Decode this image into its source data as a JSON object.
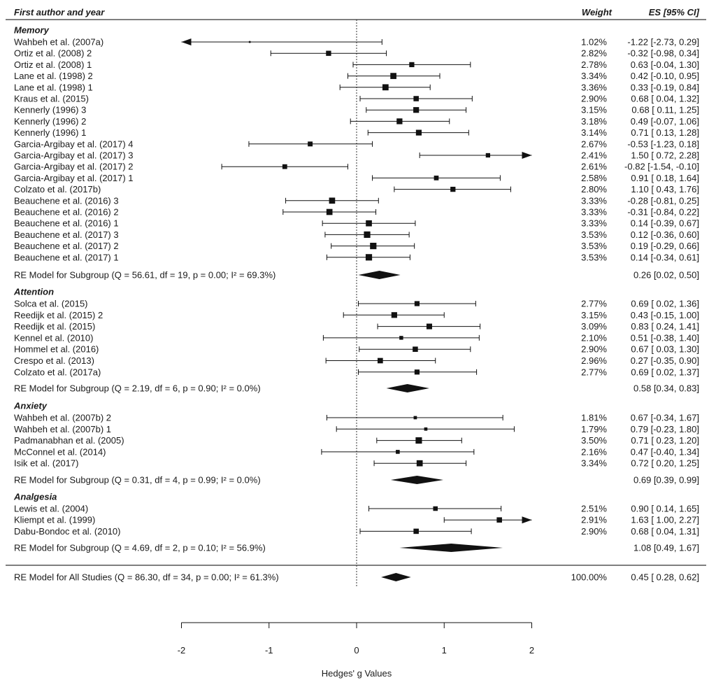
{
  "chart_data": {
    "type": "forest",
    "headers": {
      "study": "First author and year",
      "weight": "Weight",
      "es": "ES [95% CI]"
    },
    "xlabel": "Hedges' g Values",
    "xlim": [
      -2,
      2
    ],
    "xticks": [
      -2,
      -1,
      0,
      1,
      2
    ],
    "reference_line": 0,
    "groups": [
      {
        "name": "Memory",
        "studies": [
          {
            "label": "Wahbeh et al. (2007a)",
            "weight": 1.02,
            "weight_text": "1.02%",
            "es": -1.22,
            "lo": -2.73,
            "hi": 0.29,
            "es_text": "-1.22 [-2.73,  0.29]"
          },
          {
            "label": "Ortiz et al. (2008) 2",
            "weight": 2.82,
            "weight_text": "2.82%",
            "es": -0.32,
            "lo": -0.98,
            "hi": 0.34,
            "es_text": "-0.32 [-0.98,  0.34]"
          },
          {
            "label": "Ortiz et al. (2008) 1",
            "weight": 2.78,
            "weight_text": "2.78%",
            "es": 0.63,
            "lo": -0.04,
            "hi": 1.3,
            "es_text": "0.63 [-0.04,  1.30]"
          },
          {
            "label": "Lane et al. (1998) 2",
            "weight": 3.34,
            "weight_text": "3.34%",
            "es": 0.42,
            "lo": -0.1,
            "hi": 0.95,
            "es_text": "0.42 [-0.10,  0.95]"
          },
          {
            "label": "Lane et al. (1998) 1",
            "weight": 3.36,
            "weight_text": "3.36%",
            "es": 0.33,
            "lo": -0.19,
            "hi": 0.84,
            "es_text": "0.33 [-0.19,  0.84]"
          },
          {
            "label": "Kraus et al. (2015)",
            "weight": 2.9,
            "weight_text": "2.90%",
            "es": 0.68,
            "lo": 0.04,
            "hi": 1.32,
            "es_text": "0.68 [ 0.04,  1.32]"
          },
          {
            "label": "Kennerly (1996) 3",
            "weight": 3.15,
            "weight_text": "3.15%",
            "es": 0.68,
            "lo": 0.11,
            "hi": 1.25,
            "es_text": "0.68 [ 0.11,  1.25]"
          },
          {
            "label": "Kennerly (1996) 2",
            "weight": 3.18,
            "weight_text": "3.18%",
            "es": 0.49,
            "lo": -0.07,
            "hi": 1.06,
            "es_text": "0.49 [-0.07,  1.06]"
          },
          {
            "label": "Kennerly (1996) 1",
            "weight": 3.14,
            "weight_text": "3.14%",
            "es": 0.71,
            "lo": 0.13,
            "hi": 1.28,
            "es_text": "0.71 [ 0.13,  1.28]"
          },
          {
            "label": "Garcia-Argibay et al. (2017) 4",
            "weight": 2.67,
            "weight_text": "2.67%",
            "es": -0.53,
            "lo": -1.23,
            "hi": 0.18,
            "es_text": "-0.53 [-1.23,  0.18]"
          },
          {
            "label": "Garcia-Argibay et al. (2017) 3",
            "weight": 2.41,
            "weight_text": "2.41%",
            "es": 1.5,
            "lo": 0.72,
            "hi": 2.28,
            "es_text": "1.50 [ 0.72,  2.28]"
          },
          {
            "label": "Garcia-Argibay et al. (2017) 2",
            "weight": 2.61,
            "weight_text": "2.61%",
            "es": -0.82,
            "lo": -1.54,
            "hi": -0.1,
            "es_text": "-0.82 [-1.54, -0.10]"
          },
          {
            "label": "Garcia-Argibay et al. (2017) 1",
            "weight": 2.58,
            "weight_text": "2.58%",
            "es": 0.91,
            "lo": 0.18,
            "hi": 1.64,
            "es_text": "0.91 [ 0.18,  1.64]"
          },
          {
            "label": "Colzato et al. (2017b)",
            "weight": 2.8,
            "weight_text": "2.80%",
            "es": 1.1,
            "lo": 0.43,
            "hi": 1.76,
            "es_text": "1.10 [ 0.43,  1.76]"
          },
          {
            "label": "Beauchene et al. (2016) 3",
            "weight": 3.33,
            "weight_text": "3.33%",
            "es": -0.28,
            "lo": -0.81,
            "hi": 0.25,
            "es_text": "-0.28 [-0.81,  0.25]"
          },
          {
            "label": "Beauchene et al. (2016) 2",
            "weight": 3.33,
            "weight_text": "3.33%",
            "es": -0.31,
            "lo": -0.84,
            "hi": 0.22,
            "es_text": "-0.31 [-0.84,  0.22]"
          },
          {
            "label": "Beauchene et al. (2016) 1",
            "weight": 3.33,
            "weight_text": "3.33%",
            "es": 0.14,
            "lo": -0.39,
            "hi": 0.67,
            "es_text": "0.14 [-0.39,  0.67]"
          },
          {
            "label": "Beauchene et al. (2017) 3",
            "weight": 3.53,
            "weight_text": "3.53%",
            "es": 0.12,
            "lo": -0.36,
            "hi": 0.6,
            "es_text": "0.12 [-0.36,  0.60]"
          },
          {
            "label": "Beauchene et al. (2017) 2",
            "weight": 3.53,
            "weight_text": "3.53%",
            "es": 0.19,
            "lo": -0.29,
            "hi": 0.66,
            "es_text": "0.19 [-0.29,  0.66]"
          },
          {
            "label": "Beauchene et al. (2017) 1",
            "weight": 3.53,
            "weight_text": "3.53%",
            "es": 0.14,
            "lo": -0.34,
            "hi": 0.61,
            "es_text": "0.14 [-0.34,  0.61]"
          }
        ],
        "summary": {
          "label": "RE Model for Subgroup (Q = 56.61, df = 19, p = 0.00; I² = 69.3%)",
          "es": 0.26,
          "lo": 0.02,
          "hi": 0.5,
          "es_text": "0.26 [0.02, 0.50]"
        }
      },
      {
        "name": "Attention",
        "studies": [
          {
            "label": "Solca et al. (2015)",
            "weight": 2.77,
            "weight_text": "2.77%",
            "es": 0.69,
            "lo": 0.02,
            "hi": 1.36,
            "es_text": "0.69 [ 0.02,  1.36]"
          },
          {
            "label": "Reedijk et al. (2015) 2",
            "weight": 3.15,
            "weight_text": "3.15%",
            "es": 0.43,
            "lo": -0.15,
            "hi": 1.0,
            "es_text": "0.43 [-0.15,  1.00]"
          },
          {
            "label": "Reedijk et al. (2015)",
            "weight": 3.09,
            "weight_text": "3.09%",
            "es": 0.83,
            "lo": 0.24,
            "hi": 1.41,
            "es_text": "0.83 [ 0.24,  1.41]"
          },
          {
            "label": "Kennel et al. (2010)",
            "weight": 2.1,
            "weight_text": "2.10%",
            "es": 0.51,
            "lo": -0.38,
            "hi": 1.4,
            "es_text": "0.51 [-0.38,  1.40]"
          },
          {
            "label": "Hommel et al. (2016)",
            "weight": 2.9,
            "weight_text": "2.90%",
            "es": 0.67,
            "lo": 0.03,
            "hi": 1.3,
            "es_text": "0.67 [ 0.03,  1.30]"
          },
          {
            "label": "Crespo et al. (2013)",
            "weight": 2.96,
            "weight_text": "2.96%",
            "es": 0.27,
            "lo": -0.35,
            "hi": 0.9,
            "es_text": "0.27 [-0.35,  0.90]"
          },
          {
            "label": "Colzato et al. (2017a)",
            "weight": 2.77,
            "weight_text": "2.77%",
            "es": 0.69,
            "lo": 0.02,
            "hi": 1.37,
            "es_text": "0.69 [ 0.02,  1.37]"
          }
        ],
        "summary": {
          "label": "RE Model for Subgroup (Q = 2.19, df = 6, p = 0.90; I² = 0.0%)",
          "es": 0.58,
          "lo": 0.34,
          "hi": 0.83,
          "es_text": "0.58 [0.34, 0.83]"
        }
      },
      {
        "name": "Anxiety",
        "studies": [
          {
            "label": "Wahbeh et al. (2007b) 2",
            "weight": 1.81,
            "weight_text": "1.81%",
            "es": 0.67,
            "lo": -0.34,
            "hi": 1.67,
            "es_text": "0.67 [-0.34,  1.67]"
          },
          {
            "label": "Wahbeh et al. (2007b) 1",
            "weight": 1.79,
            "weight_text": "1.79%",
            "es": 0.79,
            "lo": -0.23,
            "hi": 1.8,
            "es_text": "0.79 [-0.23,  1.80]"
          },
          {
            "label": "Padmanabhan et al. (2005)",
            "weight": 3.5,
            "weight_text": "3.50%",
            "es": 0.71,
            "lo": 0.23,
            "hi": 1.2,
            "es_text": "0.71 [ 0.23,  1.20]"
          },
          {
            "label": "McConnel et al. (2014)",
            "weight": 2.16,
            "weight_text": "2.16%",
            "es": 0.47,
            "lo": -0.4,
            "hi": 1.34,
            "es_text": "0.47 [-0.40,  1.34]"
          },
          {
            "label": "Isik et al. (2017)",
            "weight": 3.34,
            "weight_text": "3.34%",
            "es": 0.72,
            "lo": 0.2,
            "hi": 1.25,
            "es_text": "0.72 [ 0.20,  1.25]"
          }
        ],
        "summary": {
          "label": "RE Model for Subgroup (Q = 0.31, df = 4, p = 0.99; I² = 0.0%)",
          "es": 0.69,
          "lo": 0.39,
          "hi": 0.99,
          "es_text": "0.69 [0.39, 0.99]"
        }
      },
      {
        "name": "Analgesia",
        "studies": [
          {
            "label": "Lewis et al. (2004)",
            "weight": 2.51,
            "weight_text": "2.51%",
            "es": 0.9,
            "lo": 0.14,
            "hi": 1.65,
            "es_text": "0.90 [ 0.14,  1.65]"
          },
          {
            "label": "Kliempt et al. (1999)",
            "weight": 2.91,
            "weight_text": "2.91%",
            "es": 1.63,
            "lo": 1.0,
            "hi": 2.27,
            "es_text": "1.63 [ 1.00,  2.27]"
          },
          {
            "label": "Dabu-Bondoc et al. (2010)",
            "weight": 2.9,
            "weight_text": "2.90%",
            "es": 0.68,
            "lo": 0.04,
            "hi": 1.31,
            "es_text": "0.68 [ 0.04,  1.31]"
          }
        ],
        "summary": {
          "label": "RE Model for Subgroup (Q = 4.69, df = 2, p = 0.10; I² = 56.9%)",
          "es": 1.08,
          "lo": 0.49,
          "hi": 1.67,
          "es_text": "1.08 [0.49, 1.67]"
        }
      }
    ],
    "overall": {
      "label": "RE Model for All Studies (Q = 86.30, df = 34, p = 0.00; I² = 61.3%)",
      "weight_text": "100.00%",
      "es": 0.45,
      "lo": 0.28,
      "hi": 0.62,
      "es_text": "0.45 [ 0.28,  0.62]"
    }
  }
}
